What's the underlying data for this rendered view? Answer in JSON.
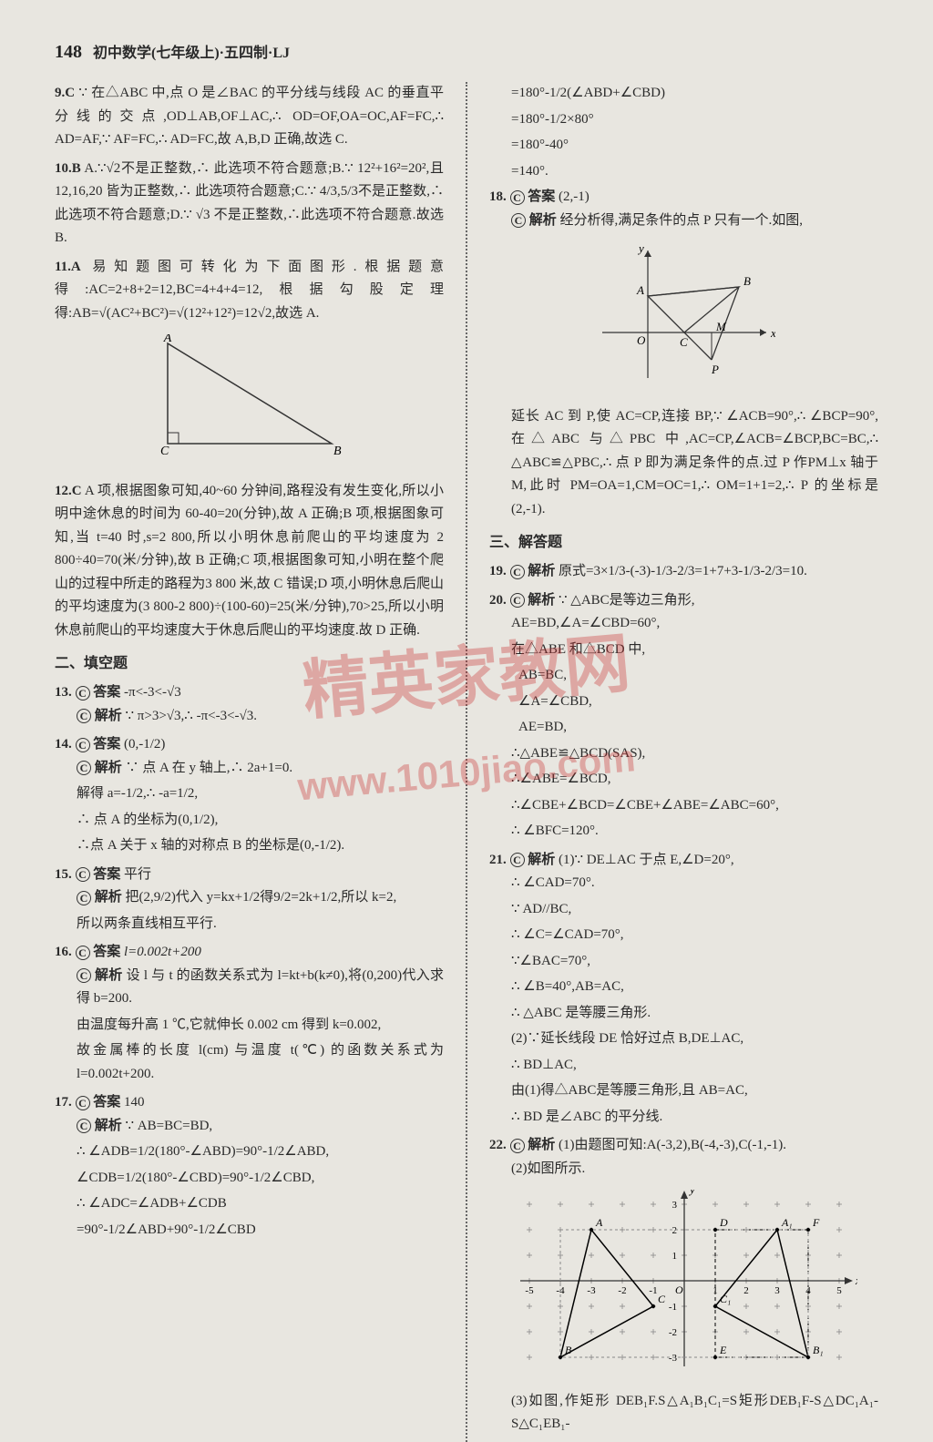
{
  "header": {
    "page_num": "148",
    "title": "初中数学(七年级上)·五四制·LJ"
  },
  "watermark": {
    "text": "精英家教网",
    "url": "www.1010jiao.com"
  },
  "left_column": {
    "q9": {
      "num": "9.C",
      "text": "∵ 在△ABC 中,点 O 是∠BAC 的平分线与线段 AC 的垂直平分线的交点,OD⊥AB,OF⊥AC,∴ OD=OF,OA=OC,AF=FC,∴ AD=AF,∵ AF=FC,∴ AD=FC,故 A,B,D 正确,故选 C."
    },
    "q10": {
      "num": "10.B",
      "text": "A.∵√2不是正整数,∴ 此选项不符合题意;B.∵ 12²+16²=20²,且 12,16,20 皆为正整数,∴ 此选项符合题意;C.∵ 4/3,5/3不是正整数,∴ 此选项不符合题意;D.∵ √3 不是正整数,∴此选项不符合题意.故选 B."
    },
    "q11": {
      "num": "11.A",
      "text": "易知题图可转化为下面图形.根据题意得:AC=2+8+2=12,BC=4+4+4=12,根据勾股定理得:AB=√(AC²+BC²)=√(12²+12²)=12√2,故选 A.",
      "figure_labels": {
        "A": "A",
        "B": "B",
        "C": "C"
      }
    },
    "q12": {
      "num": "12.C",
      "text": "A 项,根据图象可知,40~60 分钟间,路程没有发生变化,所以小明中途休息的时间为 60-40=20(分钟),故 A 正确;B 项,根据图象可知,当 t=40 时,s=2 800,所以小明休息前爬山的平均速度为 2 800÷40=70(米/分钟),故 B 正确;C 项,根据图象可知,小明在整个爬山的过程中所走的路程为3 800 米,故 C 错误;D 项,小明休息后爬山的平均速度为(3 800-2 800)÷(100-60)=25(米/分钟),70>25,所以小明休息前爬山的平均速度大于休息后爬山的平均速度.故 D 正确."
    },
    "section2": "二、填空题",
    "q13": {
      "num": "13.",
      "ans_label": "答案",
      "ans": "-π<-3<-√3",
      "exp_label": "解析",
      "exp": "∵ π>3>√3,∴ -π<-3<-√3."
    },
    "q14": {
      "num": "14.",
      "ans_label": "答案",
      "ans": "(0,-1/2)",
      "exp_label": "解析",
      "exp1": "∵ 点 A 在 y 轴上,∴ 2a+1=0.",
      "exp2": "解得 a=-1/2,∴ -a=1/2,",
      "exp3": "∴ 点 A 的坐标为(0,1/2),",
      "exp4": "∴点 A 关于 x 轴的对称点 B 的坐标是(0,-1/2)."
    },
    "q15": {
      "num": "15.",
      "ans_label": "答案",
      "ans": "平行",
      "exp_label": "解析",
      "exp1": "把(2,9/2)代入 y=kx+1/2得9/2=2k+1/2,所以 k=2,",
      "exp2": "所以两条直线相互平行."
    },
    "q16": {
      "num": "16.",
      "ans_label": "答案",
      "ans": "l=0.002t+200",
      "exp_label": "解析",
      "exp1": "设 l 与 t 的函数关系式为 l=kt+b(k≠0),将(0,200)代入求得 b=200.",
      "exp2": "由温度每升高 1 ℃,它就伸长 0.002 cm 得到 k=0.002,",
      "exp3": "故金属棒的长度 l(cm) 与温度 t(℃) 的函数关系式为 l=0.002t+200."
    },
    "q17": {
      "num": "17.",
      "ans_label": "答案",
      "ans": "140",
      "exp_label": "解析",
      "exp1": "∵ AB=BC=BD,",
      "exp2": "∴ ∠ADB=1/2(180°-∠ABD)=90°-1/2∠ABD,",
      "exp3": "∠CDB=1/2(180°-∠CBD)=90°-1/2∠CBD,",
      "exp4": "∴ ∠ADC=∠ADB+∠CDB",
      "exp5": "=90°-1/2∠ABD+90°-1/2∠CBD"
    }
  },
  "right_column": {
    "q17_cont": {
      "l1": "=180°-1/2(∠ABD+∠CBD)",
      "l2": "=180°-1/2×80°",
      "l3": "=180°-40°",
      "l4": "=140°."
    },
    "q18": {
      "num": "18.",
      "ans_label": "答案",
      "ans": "(2,-1)",
      "exp_label": "解析",
      "exp1": "经分析得,满足条件的点 P 只有一个.如图,",
      "figure_labels": {
        "y": "y",
        "x": "x",
        "O": "O",
        "A": "A",
        "B": "B",
        "C": "C",
        "M": "M",
        "P": "P"
      },
      "exp2": "延长 AC 到 P,使 AC=CP,连接 BP,∵ ∠ACB=90°,∴ ∠BCP=90°,在△ABC 与△PBC 中,AC=CP,∠ACB=∠BCP,BC=BC,∴ △ABC≌△PBC,∴ 点 P 即为满足条件的点.过 P 作PM⊥x 轴于 M,此时 PM=OA=1,CM=OC=1,∴ OM=1+1=2,∴ P 的坐标是(2,-1)."
    },
    "section3": "三、解答题",
    "q19": {
      "num": "19.",
      "exp_label": "解析",
      "exp": "原式=3×1/3-(-3)-1/3-2/3=1+7+3-1/3-2/3=10."
    },
    "q20": {
      "num": "20.",
      "exp_label": "解析",
      "exp1": "∵ △ABC是等边三角形,",
      "exp2": "AE=BD,∠A=∠CBD=60°,",
      "exp3": "在△ABE 和△BCD 中,",
      "exp4": "AB=BC,",
      "exp5": "∠A=∠CBD,",
      "exp6": "AE=BD,",
      "exp7": "∴△ABE≌△BCD(SAS),",
      "exp8": "∴∠ABE=∠BCD,",
      "exp9": "∴∠CBE+∠BCD=∠CBE+∠ABE=∠ABC=60°,",
      "exp10": "∴ ∠BFC=120°."
    },
    "q21": {
      "num": "21.",
      "exp_label": "解析",
      "exp0": "(1)∵ DE⊥AC 于点 E,∠D=20°,",
      "exp1": "∴ ∠CAD=70°.",
      "exp2": "∵ AD//BC,",
      "exp3": "∴ ∠C=∠CAD=70°,",
      "exp4": "∵∠BAC=70°,",
      "exp5": "∴ ∠B=40°,AB=AC,",
      "exp6": "∴ △ABC 是等腰三角形.",
      "exp7": "(2)∵延长线段 DE 恰好过点 B,DE⊥AC,",
      "exp8": "∴ BD⊥AC,",
      "exp9": "由(1)得△ABC是等腰三角形,且 AB=AC,",
      "exp10": "∴ BD 是∠ABC 的平分线."
    },
    "q22": {
      "num": "22.",
      "exp_label": "解析",
      "exp1": "(1)由题图可知:A(-3,2),B(-4,-3),C(-1,-1).",
      "exp2": "(2)如图所示.",
      "exp3": "(3)如图,作矩形 DEB₁F.S△A₁B₁C₁=S矩形DEB₁F-S△DC₁A₁-S△C₁EB₁-",
      "grid": {
        "xmin": -5,
        "xmax": 5,
        "ymin": -3,
        "ymax": 3,
        "points": {
          "A": [
            -3,
            2
          ],
          "B": [
            -4,
            -3
          ],
          "C": [
            -1,
            -1
          ],
          "A1": [
            3,
            2
          ],
          "B1": [
            4,
            -3
          ],
          "C1": [
            1,
            -1
          ],
          "D": [
            1,
            2
          ],
          "E": [
            1,
            -3
          ],
          "F": [
            4,
            2
          ],
          "O": [
            0,
            0
          ]
        },
        "axis_color": "#333",
        "grid_color": "#888",
        "line_color": "#000"
      }
    }
  }
}
